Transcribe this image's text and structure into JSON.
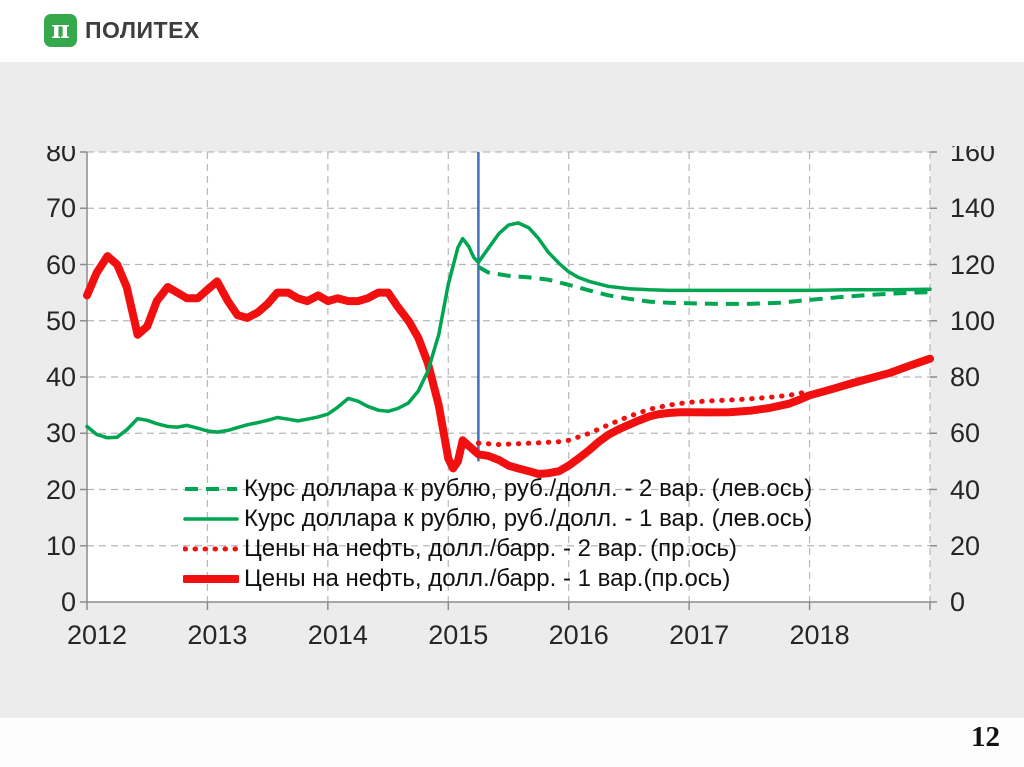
{
  "header": {
    "logo_symbol": "π",
    "logo_text": "ПОЛИТЕХ"
  },
  "footer": {
    "page_number": "12"
  },
  "colors": {
    "green": "#00a551",
    "red": "#f20f0f",
    "blue": "#3f6fbf",
    "grid": "#b8b8b8",
    "axis": "#8c8c8c",
    "slide_bg": "#ececec",
    "plot_bg": "#ffffff",
    "logo_green": "#35a84c",
    "tick_text": "#262626"
  },
  "chart_data": {
    "type": "line",
    "grid": true,
    "legend_position": "inside-bottom-left",
    "x_axis": {
      "range": [
        2012,
        2019
      ],
      "tick_years": [
        2012,
        2013,
        2014,
        2015,
        2016,
        2017,
        2018,
        2019
      ],
      "labels": [
        "2012",
        "2013",
        "2014",
        "2015",
        "2016",
        "2017",
        "2018"
      ]
    },
    "y_axis_left": {
      "range": [
        0,
        80
      ],
      "ticks": [
        0,
        10,
        20,
        30,
        40,
        50,
        60,
        70,
        80
      ]
    },
    "y_axis_right": {
      "range": [
        0,
        160
      ],
      "ticks": [
        0,
        20,
        40,
        60,
        80,
        100,
        120,
        140,
        160
      ]
    },
    "annotation_vline": {
      "x": 2015.25,
      "y_top_right_axis": 160,
      "y_bottom_right_axis": 50
    },
    "series": [
      {
        "name": "Курс доллара к рублю, руб./долл. - 2 вар. (лев.ось)",
        "axis": "left",
        "style": "dashed",
        "color": "#00a551",
        "width": 4,
        "points": [
          [
            2015.25,
            59.6
          ],
          [
            2015.33,
            58.6
          ],
          [
            2015.5,
            58.0
          ],
          [
            2015.67,
            57.7
          ],
          [
            2015.83,
            57.3
          ],
          [
            2016.0,
            56.4
          ],
          [
            2016.17,
            55.4
          ],
          [
            2016.33,
            54.5
          ],
          [
            2016.5,
            53.9
          ],
          [
            2016.67,
            53.4
          ],
          [
            2016.83,
            53.2
          ],
          [
            2017.0,
            53.1
          ],
          [
            2017.25,
            53.0
          ],
          [
            2017.5,
            53.0
          ],
          [
            2017.75,
            53.2
          ],
          [
            2018.0,
            53.7
          ],
          [
            2018.25,
            54.2
          ],
          [
            2018.5,
            54.6
          ],
          [
            2018.75,
            54.9
          ],
          [
            2019.0,
            55.1
          ]
        ]
      },
      {
        "name": "Курс доллара к рублю, руб./долл. - 1 вар. (лев.ось)",
        "axis": "left",
        "style": "solid",
        "color": "#00a551",
        "width": 3.5,
        "points": [
          [
            2012.0,
            31.2
          ],
          [
            2012.08,
            29.8
          ],
          [
            2012.17,
            29.2
          ],
          [
            2012.25,
            29.3
          ],
          [
            2012.33,
            30.6
          ],
          [
            2012.42,
            32.6
          ],
          [
            2012.5,
            32.3
          ],
          [
            2012.58,
            31.7
          ],
          [
            2012.67,
            31.2
          ],
          [
            2012.75,
            31.1
          ],
          [
            2012.83,
            31.4
          ],
          [
            2012.92,
            30.9
          ],
          [
            2013.0,
            30.4
          ],
          [
            2013.08,
            30.2
          ],
          [
            2013.17,
            30.5
          ],
          [
            2013.25,
            31.0
          ],
          [
            2013.33,
            31.5
          ],
          [
            2013.42,
            31.9
          ],
          [
            2013.5,
            32.3
          ],
          [
            2013.58,
            32.8
          ],
          [
            2013.67,
            32.5
          ],
          [
            2013.75,
            32.2
          ],
          [
            2013.83,
            32.5
          ],
          [
            2013.92,
            32.9
          ],
          [
            2014.0,
            33.4
          ],
          [
            2014.08,
            34.6
          ],
          [
            2014.17,
            36.2
          ],
          [
            2014.25,
            35.7
          ],
          [
            2014.33,
            34.8
          ],
          [
            2014.42,
            34.1
          ],
          [
            2014.5,
            33.9
          ],
          [
            2014.58,
            34.4
          ],
          [
            2014.67,
            35.4
          ],
          [
            2014.75,
            37.5
          ],
          [
            2014.83,
            41.0
          ],
          [
            2014.92,
            47.5
          ],
          [
            2015.0,
            56.5
          ],
          [
            2015.08,
            63.0
          ],
          [
            2015.12,
            64.6
          ],
          [
            2015.17,
            63.2
          ],
          [
            2015.21,
            61.3
          ],
          [
            2015.25,
            60.4
          ],
          [
            2015.33,
            62.8
          ],
          [
            2015.42,
            65.5
          ],
          [
            2015.5,
            67.0
          ],
          [
            2015.58,
            67.4
          ],
          [
            2015.67,
            66.5
          ],
          [
            2015.75,
            64.6
          ],
          [
            2015.83,
            62.2
          ],
          [
            2015.92,
            60.2
          ],
          [
            2016.0,
            58.7
          ],
          [
            2016.08,
            57.7
          ],
          [
            2016.17,
            57.0
          ],
          [
            2016.33,
            56.1
          ],
          [
            2016.5,
            55.7
          ],
          [
            2016.67,
            55.5
          ],
          [
            2016.83,
            55.4
          ],
          [
            2017.0,
            55.4
          ],
          [
            2017.33,
            55.4
          ],
          [
            2017.67,
            55.4
          ],
          [
            2018.0,
            55.4
          ],
          [
            2018.33,
            55.5
          ],
          [
            2018.67,
            55.5
          ],
          [
            2019.0,
            55.6
          ]
        ]
      },
      {
        "name": "Цены на нефть, долл./барр.  - 2 вар. (пр.ось)",
        "axis": "right",
        "style": "dotted",
        "color": "#f20f0f",
        "width": 5,
        "points": [
          [
            2015.25,
            56.5
          ],
          [
            2015.42,
            56.0
          ],
          [
            2015.58,
            56.3
          ],
          [
            2015.75,
            56.6
          ],
          [
            2015.92,
            57.0
          ],
          [
            2016.0,
            57.5
          ],
          [
            2016.17,
            60.0
          ],
          [
            2016.33,
            63.0
          ],
          [
            2016.5,
            66.0
          ],
          [
            2016.67,
            68.5
          ],
          [
            2016.83,
            70.0
          ],
          [
            2017.0,
            71.0
          ],
          [
            2017.17,
            71.5
          ],
          [
            2017.33,
            71.8
          ],
          [
            2017.5,
            72.2
          ],
          [
            2017.67,
            72.8
          ],
          [
            2017.83,
            73.5
          ],
          [
            2017.95,
            74.5
          ]
        ]
      },
      {
        "name": "Цены на нефть, долл./барр.  - 1 вар.(пр.ось)",
        "axis": "right",
        "style": "solid",
        "color": "#f20f0f",
        "width": 8,
        "points": [
          [
            2012.0,
            109
          ],
          [
            2012.08,
            117
          ],
          [
            2012.17,
            123
          ],
          [
            2012.25,
            120
          ],
          [
            2012.33,
            112
          ],
          [
            2012.42,
            95
          ],
          [
            2012.5,
            98
          ],
          [
            2012.58,
            107
          ],
          [
            2012.67,
            112
          ],
          [
            2012.75,
            110
          ],
          [
            2012.83,
            108
          ],
          [
            2012.92,
            108
          ],
          [
            2013.0,
            111
          ],
          [
            2013.08,
            114
          ],
          [
            2013.17,
            107
          ],
          [
            2013.25,
            102
          ],
          [
            2013.33,
            101
          ],
          [
            2013.42,
            103
          ],
          [
            2013.5,
            106
          ],
          [
            2013.58,
            110
          ],
          [
            2013.67,
            110
          ],
          [
            2013.75,
            108
          ],
          [
            2013.83,
            107
          ],
          [
            2013.92,
            109
          ],
          [
            2014.0,
            107
          ],
          [
            2014.08,
            108
          ],
          [
            2014.17,
            107
          ],
          [
            2014.25,
            107
          ],
          [
            2014.33,
            108
          ],
          [
            2014.42,
            110
          ],
          [
            2014.5,
            110
          ],
          [
            2014.58,
            105
          ],
          [
            2014.67,
            100
          ],
          [
            2014.75,
            94
          ],
          [
            2014.83,
            85
          ],
          [
            2014.92,
            70
          ],
          [
            2015.0,
            51
          ],
          [
            2015.04,
            47.5
          ],
          [
            2015.08,
            50
          ],
          [
            2015.12,
            57.5
          ],
          [
            2015.17,
            55.5
          ],
          [
            2015.25,
            52.5
          ],
          [
            2015.33,
            52
          ],
          [
            2015.42,
            50.5
          ],
          [
            2015.5,
            48.5
          ],
          [
            2015.58,
            47.5
          ],
          [
            2015.67,
            46.5
          ],
          [
            2015.75,
            45.5
          ],
          [
            2015.83,
            45.8
          ],
          [
            2015.92,
            46.5
          ],
          [
            2016.0,
            48.5
          ],
          [
            2016.08,
            51
          ],
          [
            2016.17,
            54
          ],
          [
            2016.25,
            57
          ],
          [
            2016.33,
            59.5
          ],
          [
            2016.42,
            61.5
          ],
          [
            2016.5,
            63
          ],
          [
            2016.58,
            64.5
          ],
          [
            2016.67,
            66
          ],
          [
            2016.75,
            66.8
          ],
          [
            2016.83,
            67.2
          ],
          [
            2016.92,
            67.5
          ],
          [
            2017.0,
            67.5
          ],
          [
            2017.17,
            67.4
          ],
          [
            2017.33,
            67.5
          ],
          [
            2017.5,
            68
          ],
          [
            2017.67,
            69
          ],
          [
            2017.83,
            70.5
          ],
          [
            2017.92,
            72
          ],
          [
            2018.0,
            73.5
          ],
          [
            2018.17,
            75.5
          ],
          [
            2018.33,
            77.5
          ],
          [
            2018.5,
            79.5
          ],
          [
            2018.67,
            81.5
          ],
          [
            2018.83,
            84
          ],
          [
            2019.0,
            86.5
          ]
        ]
      }
    ]
  }
}
